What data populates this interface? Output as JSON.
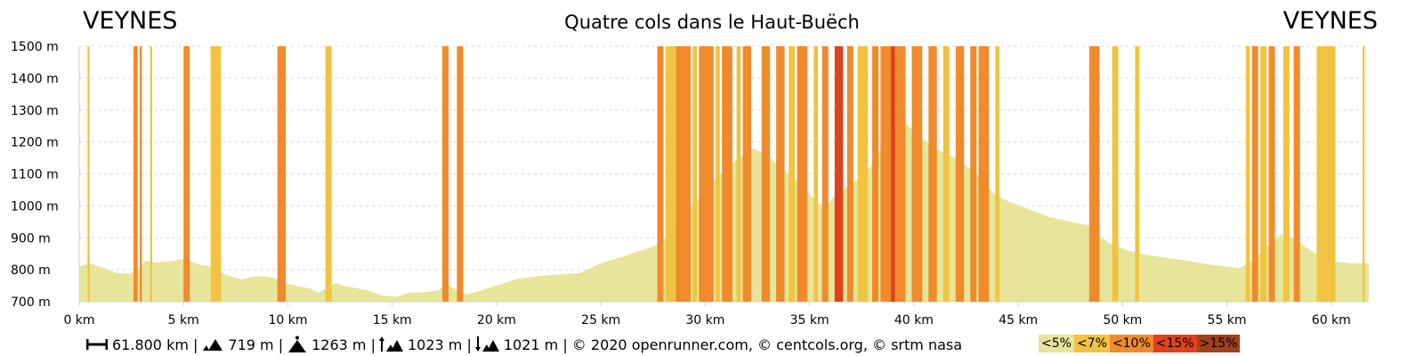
{
  "header": {
    "start": "VEYNES",
    "end": "VEYNES",
    "title": "Quatre cols dans le Haut-Buëch"
  },
  "footer": {
    "distance": "61.800 km |",
    "elevation_gain": "719 m |",
    "max_altitude": "1263 m |",
    "ascent": "1023 m |",
    "descent": "1021 m | © 2020 openrunner.com, © centcols.org, © srtm nasa"
  },
  "legend": [
    {
      "label": "<5%",
      "color": "#e6e59a"
    },
    {
      "label": "<7%",
      "color": "#f2c340"
    },
    {
      "label": "<10%",
      "color": "#f08a2c"
    },
    {
      "label": "<15%",
      "color": "#e0401c"
    },
    {
      "label": ">15%",
      "color": "#a0401c"
    }
  ],
  "chart_data": {
    "type": "area",
    "title": "Quatre cols dans le Haut-Buëch",
    "xlabel": "",
    "ylabel": "",
    "xlim": [
      0,
      61.8
    ],
    "ylim": [
      700,
      1500
    ],
    "x_ticks": [
      "0 km",
      "5 km",
      "10 km",
      "15 km",
      "20 km",
      "25 km",
      "30 km",
      "35 km",
      "40 km",
      "45 km",
      "50 km",
      "55 km",
      "60 km"
    ],
    "x_tick_values": [
      0,
      5,
      10,
      15,
      20,
      25,
      30,
      35,
      40,
      45,
      50,
      55,
      60
    ],
    "y_ticks": [
      "700 m",
      "800 m",
      "900 m",
      "1000 m",
      "1100 m",
      "1200 m",
      "1300 m",
      "1400 m",
      "1500 m"
    ],
    "y_tick_values": [
      700,
      800,
      900,
      1000,
      1100,
      1200,
      1300,
      1400,
      1500
    ],
    "grid": true,
    "profile": [
      [
        0,
        810
      ],
      [
        0.5,
        820
      ],
      [
        1.2,
        805
      ],
      [
        1.8,
        790
      ],
      [
        2.4,
        788
      ],
      [
        2.8,
        800
      ],
      [
        3.2,
        830
      ],
      [
        3.6,
        822
      ],
      [
        4.0,
        825
      ],
      [
        4.5,
        828
      ],
      [
        5.0,
        835
      ],
      [
        5.4,
        825
      ],
      [
        5.8,
        815
      ],
      [
        6.2,
        812
      ],
      [
        6.7,
        795
      ],
      [
        7.2,
        780
      ],
      [
        7.8,
        770
      ],
      [
        8.3,
        778
      ],
      [
        8.8,
        780
      ],
      [
        9.3,
        775
      ],
      [
        9.8,
        760
      ],
      [
        10.5,
        748
      ],
      [
        11.0,
        742
      ],
      [
        11.5,
        728
      ],
      [
        12.0,
        750
      ],
      [
        12.3,
        758
      ],
      [
        12.8,
        748
      ],
      [
        13.5,
        740
      ],
      [
        14.0,
        732
      ],
      [
        14.5,
        720
      ],
      [
        15.2,
        715
      ],
      [
        15.8,
        728
      ],
      [
        16.5,
        730
      ],
      [
        17.2,
        735
      ],
      [
        17.6,
        758
      ],
      [
        18.0,
        740
      ],
      [
        18.5,
        722
      ],
      [
        19.0,
        730
      ],
      [
        19.5,
        740
      ],
      [
        20.2,
        755
      ],
      [
        21.0,
        772
      ],
      [
        22.0,
        780
      ],
      [
        23.0,
        785
      ],
      [
        24.0,
        790
      ],
      [
        25.0,
        820
      ],
      [
        26.0,
        840
      ],
      [
        27.0,
        862
      ],
      [
        27.8,
        880
      ],
      [
        28.5,
        930
      ],
      [
        29.5,
        1010
      ],
      [
        30.5,
        1085
      ],
      [
        31.2,
        1130
      ],
      [
        31.8,
        1160
      ],
      [
        32.3,
        1180
      ],
      [
        32.8,
        1165
      ],
      [
        33.3,
        1140
      ],
      [
        34.0,
        1100
      ],
      [
        34.8,
        1050
      ],
      [
        35.5,
        1005
      ],
      [
        35.8,
        1000
      ],
      [
        36.2,
        1030
      ],
      [
        36.8,
        1060
      ],
      [
        37.5,
        1090
      ],
      [
        38.0,
        1130
      ],
      [
        38.6,
        1200
      ],
      [
        39.2,
        1263
      ],
      [
        39.6,
        1258
      ],
      [
        40.2,
        1220
      ],
      [
        41.0,
        1180
      ],
      [
        42.0,
        1150
      ],
      [
        43.0,
        1100
      ],
      [
        43.8,
        1040
      ],
      [
        44.5,
        1015
      ],
      [
        45.5,
        990
      ],
      [
        46.5,
        965
      ],
      [
        47.5,
        950
      ],
      [
        48.3,
        940
      ],
      [
        48.8,
        910
      ],
      [
        49.5,
        878
      ],
      [
        50.3,
        860
      ],
      [
        51.0,
        848
      ],
      [
        52.0,
        838
      ],
      [
        53.0,
        830
      ],
      [
        54.0,
        818
      ],
      [
        55.0,
        810
      ],
      [
        55.6,
        805
      ],
      [
        56.3,
        830
      ],
      [
        57.0,
        880
      ],
      [
        57.6,
        910
      ],
      [
        58.2,
        900
      ],
      [
        58.8,
        870
      ],
      [
        59.5,
        840
      ],
      [
        60.3,
        825
      ],
      [
        61.0,
        820
      ],
      [
        61.8,
        820
      ]
    ],
    "slope_bands": [
      [
        0.4,
        0.5,
        "<7%"
      ],
      [
        2.6,
        2.8,
        "<10%"
      ],
      [
        2.9,
        3.0,
        "<10%"
      ],
      [
        3.4,
        3.5,
        "<7%"
      ],
      [
        5.0,
        5.3,
        "<10%"
      ],
      [
        6.3,
        6.8,
        "<7%"
      ],
      [
        9.5,
        9.9,
        "<10%"
      ],
      [
        11.8,
        12.1,
        "<7%"
      ],
      [
        17.4,
        17.7,
        "<10%"
      ],
      [
        18.1,
        18.4,
        "<10%"
      ],
      [
        27.7,
        28.0,
        "<10%"
      ],
      [
        28.1,
        28.6,
        "<7%"
      ],
      [
        28.6,
        29.3,
        "<10%"
      ],
      [
        29.4,
        29.6,
        "<7%"
      ],
      [
        29.7,
        30.4,
        "<10%"
      ],
      [
        30.5,
        30.7,
        "<7%"
      ],
      [
        30.8,
        31.3,
        "<10%"
      ],
      [
        31.5,
        31.7,
        "<7%"
      ],
      [
        31.8,
        32.2,
        "<10%"
      ],
      [
        32.7,
        33.1,
        "<10%"
      ],
      [
        33.4,
        33.8,
        "<10%"
      ],
      [
        34.0,
        34.3,
        "<7%"
      ],
      [
        34.4,
        34.9,
        "<10%"
      ],
      [
        35.2,
        35.4,
        "<7%"
      ],
      [
        35.6,
        35.9,
        "<10%"
      ],
      [
        36.2,
        36.6,
        "<15%"
      ],
      [
        36.8,
        37.1,
        "<10%"
      ],
      [
        37.3,
        37.8,
        "<7%"
      ],
      [
        38.0,
        38.3,
        "<10%"
      ],
      [
        38.4,
        39.0,
        "<10%"
      ],
      [
        38.9,
        39.1,
        "<15%"
      ],
      [
        39.1,
        39.6,
        "<10%"
      ],
      [
        39.9,
        40.4,
        "<10%"
      ],
      [
        40.7,
        41.1,
        "<10%"
      ],
      [
        41.4,
        41.7,
        "<7%"
      ],
      [
        42.0,
        42.4,
        "<10%"
      ],
      [
        42.7,
        43.0,
        "<10%"
      ],
      [
        43.1,
        43.6,
        "<10%"
      ],
      [
        43.9,
        44.1,
        "<7%"
      ],
      [
        48.4,
        48.9,
        "<10%"
      ],
      [
        49.5,
        49.8,
        "<7%"
      ],
      [
        50.6,
        50.8,
        "<7%"
      ],
      [
        55.9,
        56.1,
        "<7%"
      ],
      [
        56.2,
        56.5,
        "<10%"
      ],
      [
        56.6,
        56.9,
        "<7%"
      ],
      [
        57.0,
        57.3,
        "<10%"
      ],
      [
        57.7,
        58.0,
        "<7%"
      ],
      [
        58.2,
        58.5,
        "<10%"
      ],
      [
        59.3,
        60.2,
        "<7%"
      ],
      [
        61.5,
        61.6,
        "<7%"
      ]
    ]
  }
}
